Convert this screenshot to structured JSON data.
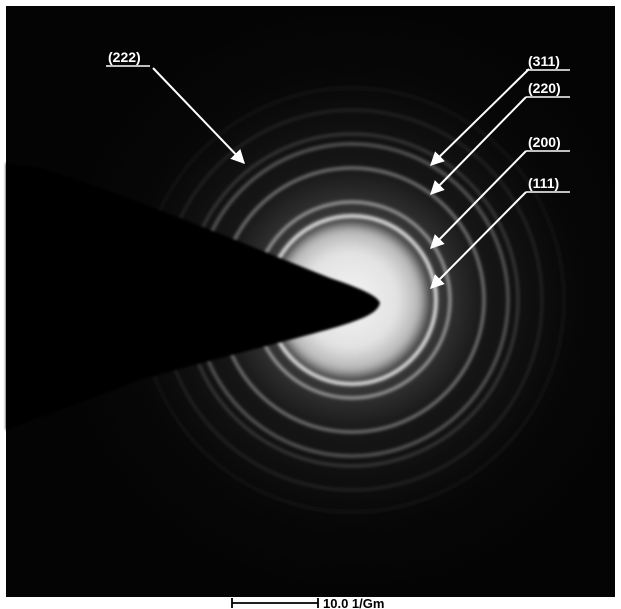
{
  "figure": {
    "type": "electron diffraction ring pattern",
    "background_color": "#ffffff",
    "pattern_background_color": "#050505",
    "ring_color": "#d9d9d9",
    "arrow_color": "#ffffff",
    "beam_stop_color": "#000000"
  },
  "ring_labels": [
    {
      "id": "ring-222",
      "text": "(222)"
    },
    {
      "id": "ring-311",
      "text": "(311)"
    },
    {
      "id": "ring-220",
      "text": "(220)"
    },
    {
      "id": "ring-200",
      "text": "(200)"
    },
    {
      "id": "ring-111",
      "text": "(111)"
    }
  ],
  "scale_bar": {
    "label": "10.0 1/Gm"
  }
}
